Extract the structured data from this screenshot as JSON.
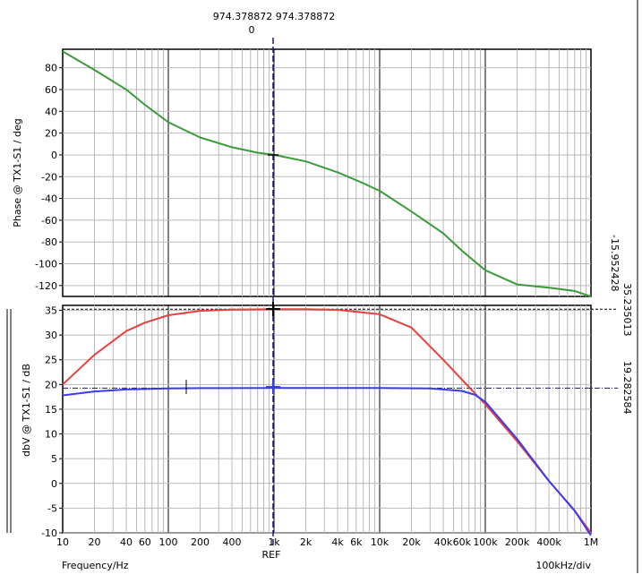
{
  "cursor": {
    "readout_top": "974.378872 974.378872",
    "readout_sub": "0",
    "ref_label": "REF"
  },
  "footer": {
    "xlabel": "Frequency/Hz",
    "scale": "100kHz/div"
  },
  "chart_data": [
    {
      "type": "line",
      "name": "phase-panel",
      "ylabel": "Phase @ TX1-S1 / deg",
      "xscale": "log",
      "xlim": [
        10,
        1000000
      ],
      "ylim": [
        -130,
        97
      ],
      "yticks": [
        80,
        60,
        40,
        20,
        0,
        -20,
        -40,
        -60,
        -80,
        -100,
        -120
      ],
      "grid": true,
      "cursor_value_label": "-15.952428",
      "series": [
        {
          "color": "#3c9a3c",
          "x": [
            10,
            20,
            40,
            60,
            100,
            200,
            400,
            700,
            1000,
            2000,
            4000,
            7000,
            10000,
            20000,
            40000,
            60000,
            100000,
            200000,
            400000,
            700000,
            1000000
          ],
          "y": [
            95,
            78,
            60,
            46,
            30,
            16,
            7,
            2,
            0,
            -6,
            -16,
            -26,
            -33,
            -52,
            -72,
            -88,
            -106,
            -119,
            -122,
            -125,
            -130
          ]
        }
      ]
    },
    {
      "type": "line",
      "name": "gain-panel",
      "ylabel": "dbV @ TX1-S1 / dB",
      "xscale": "log",
      "xlim": [
        10,
        1000000
      ],
      "ylim": [
        -10,
        36
      ],
      "yticks": [
        35,
        30,
        25,
        20,
        15,
        10,
        5,
        0,
        -5,
        -10
      ],
      "xticks": [
        {
          "v": 10,
          "t": "10"
        },
        {
          "v": 20,
          "t": "20"
        },
        {
          "v": 40,
          "t": "40"
        },
        {
          "v": 60,
          "t": "60"
        },
        {
          "v": 100,
          "t": "100"
        },
        {
          "v": 200,
          "t": "200"
        },
        {
          "v": 400,
          "t": "400"
        },
        {
          "v": 1000,
          "t": "1k"
        },
        {
          "v": 2000,
          "t": "2k"
        },
        {
          "v": 4000,
          "t": "4k"
        },
        {
          "v": 6000,
          "t": "6k"
        },
        {
          "v": 10000,
          "t": "10k"
        },
        {
          "v": 20000,
          "t": "20k"
        },
        {
          "v": 40000,
          "t": "40k"
        },
        {
          "v": 60000,
          "t": "60k"
        },
        {
          "v": 100000,
          "t": "100k"
        },
        {
          "v": 200000,
          "t": "200k"
        },
        {
          "v": 400000,
          "t": "400k"
        },
        {
          "v": 1000000,
          "t": "1M"
        }
      ],
      "grid": true,
      "cursor_value_labels": [
        "35.235013",
        "19.282584"
      ],
      "hlines": [
        35.235,
        19.28
      ],
      "series": [
        {
          "color": "#e84040",
          "x": [
            10,
            20,
            40,
            60,
            100,
            200,
            400,
            1000,
            2000,
            4000,
            10000,
            20000,
            40000,
            60000,
            100000,
            200000,
            400000,
            700000,
            1000000
          ],
          "y": [
            20,
            26,
            30.8,
            32.5,
            34,
            34.9,
            35.15,
            35.235,
            35.23,
            35.1,
            34.2,
            31.5,
            25,
            21,
            16,
            8.5,
            0.5,
            -5.5,
            -10
          ]
        },
        {
          "color": "#3a3af0",
          "x": [
            10,
            20,
            40,
            100,
            200,
            1000,
            10000,
            30000,
            60000,
            80000,
            100000,
            200000,
            400000,
            700000,
            1000000
          ],
          "y": [
            17.8,
            18.6,
            19,
            19.2,
            19.26,
            19.28,
            19.28,
            19.2,
            18.7,
            17.9,
            16.5,
            9,
            0.5,
            -5.5,
            -10.5
          ]
        }
      ]
    }
  ]
}
